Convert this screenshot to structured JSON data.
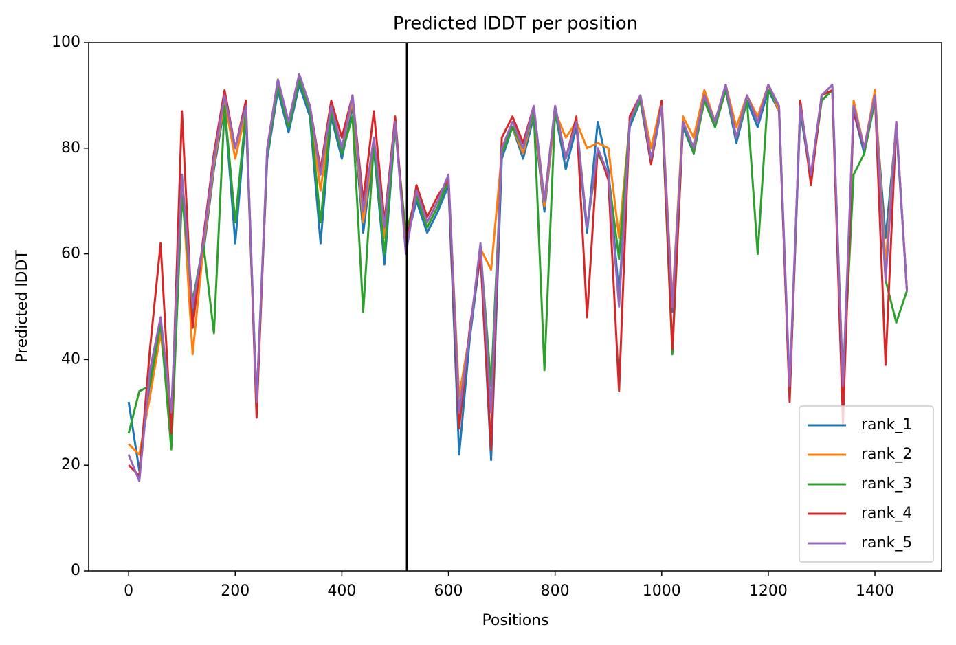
{
  "chart_data": {
    "type": "line",
    "title": "Predicted lDDT per position",
    "xlabel": "Positions",
    "ylabel": "Predicted lDDT",
    "x": [
      0,
      20,
      40,
      60,
      80,
      100,
      120,
      140,
      160,
      180,
      200,
      220,
      240,
      260,
      280,
      300,
      320,
      340,
      360,
      380,
      400,
      420,
      440,
      460,
      480,
      500,
      520,
      540,
      560,
      580,
      600,
      620,
      640,
      660,
      680,
      700,
      720,
      740,
      760,
      780,
      800,
      820,
      840,
      860,
      880,
      900,
      920,
      940,
      960,
      980,
      1000,
      1020,
      1040,
      1060,
      1080,
      1100,
      1120,
      1140,
      1160,
      1180,
      1200,
      1220,
      1240,
      1260,
      1280,
      1300,
      1320,
      1340,
      1360,
      1380,
      1400,
      1420,
      1440,
      1460
    ],
    "series": [
      {
        "name": "rank_1",
        "color": "#1f77b4",
        "values": [
          32,
          19,
          36,
          46,
          28,
          72,
          48,
          60,
          76,
          88,
          62,
          86,
          31,
          78,
          91,
          83,
          92,
          86,
          62,
          86,
          78,
          88,
          64,
          80,
          58,
          84,
          62,
          70,
          64,
          68,
          73,
          22,
          44,
          60,
          21,
          78,
          84,
          78,
          86,
          68,
          87,
          76,
          84,
          64,
          85,
          76,
          52,
          84,
          89,
          77,
          88,
          49,
          84,
          79,
          89,
          84,
          91,
          81,
          89,
          84,
          91,
          87,
          33,
          87,
          74,
          89,
          91,
          33,
          87,
          79,
          89,
          63,
          84,
          53
        ]
      },
      {
        "name": "rank_2",
        "color": "#ff7f0e",
        "values": [
          24,
          22,
          33,
          45,
          28,
          74,
          41,
          61,
          77,
          89,
          78,
          87,
          31,
          79,
          92,
          84,
          93,
          87,
          72,
          87,
          80,
          89,
          66,
          81,
          63,
          84,
          63,
          71,
          65,
          69,
          74,
          33,
          45,
          61,
          57,
          79,
          84,
          79,
          87,
          69,
          87,
          82,
          85,
          80,
          81,
          80,
          63,
          85,
          90,
          80,
          89,
          51,
          86,
          82,
          91,
          85,
          92,
          84,
          90,
          86,
          92,
          87,
          34,
          88,
          75,
          90,
          92,
          30,
          89,
          80,
          91,
          58,
          85,
          53
        ]
      },
      {
        "name": "rank_3",
        "color": "#2ca02c",
        "values": [
          26,
          34,
          35,
          47,
          23,
          71,
          51,
          62,
          45,
          88,
          66,
          87,
          32,
          79,
          92,
          84,
          93,
          87,
          66,
          87,
          79,
          86,
          49,
          81,
          60,
          84,
          64,
          71,
          65,
          69,
          74,
          30,
          45,
          61,
          35,
          79,
          84,
          80,
          87,
          38,
          87,
          78,
          85,
          65,
          79,
          75,
          59,
          85,
          89,
          78,
          88,
          41,
          85,
          79,
          89,
          84,
          91,
          82,
          89,
          60,
          91,
          88,
          33,
          88,
          74,
          89,
          91,
          35,
          75,
          79,
          89,
          55,
          47,
          53
        ]
      },
      {
        "name": "rank_4",
        "color": "#d62728",
        "values": [
          20,
          18,
          42,
          62,
          26,
          87,
          46,
          63,
          79,
          91,
          80,
          89,
          29,
          80,
          93,
          85,
          94,
          88,
          76,
          89,
          82,
          90,
          70,
          87,
          66,
          86,
          61,
          73,
          67,
          71,
          74,
          27,
          46,
          60,
          23,
          82,
          86,
          81,
          88,
          70,
          88,
          78,
          86,
          48,
          80,
          74,
          34,
          86,
          90,
          77,
          89,
          42,
          85,
          80,
          90,
          85,
          92,
          82,
          90,
          85,
          92,
          88,
          32,
          89,
          73,
          90,
          91,
          28,
          87,
          80,
          90,
          39,
          85,
          53
        ]
      },
      {
        "name": "rank_5",
        "color": "#9467bd",
        "values": [
          22,
          17,
          38,
          48,
          30,
          75,
          50,
          62,
          78,
          90,
          80,
          88,
          32,
          80,
          93,
          85,
          94,
          88,
          75,
          88,
          80,
          90,
          68,
          82,
          65,
          85,
          60,
          72,
          66,
          70,
          75,
          30,
          45,
          62,
          30,
          80,
          85,
          80,
          88,
          70,
          88,
          78,
          85,
          65,
          80,
          75,
          50,
          85,
          90,
          78,
          88,
          50,
          85,
          80,
          90,
          85,
          92,
          82,
          90,
          85,
          92,
          88,
          35,
          88,
          75,
          90,
          92,
          35,
          88,
          80,
          90,
          55,
          85,
          53
        ]
      }
    ],
    "vline": 522,
    "xlim": [
      -75,
      1525
    ],
    "ylim": [
      0,
      100
    ],
    "xticks": [
      0,
      200,
      400,
      600,
      800,
      1000,
      1200,
      1400
    ],
    "yticks": [
      0,
      20,
      40,
      60,
      80,
      100
    ],
    "grid": false,
    "legend": "lower right"
  }
}
